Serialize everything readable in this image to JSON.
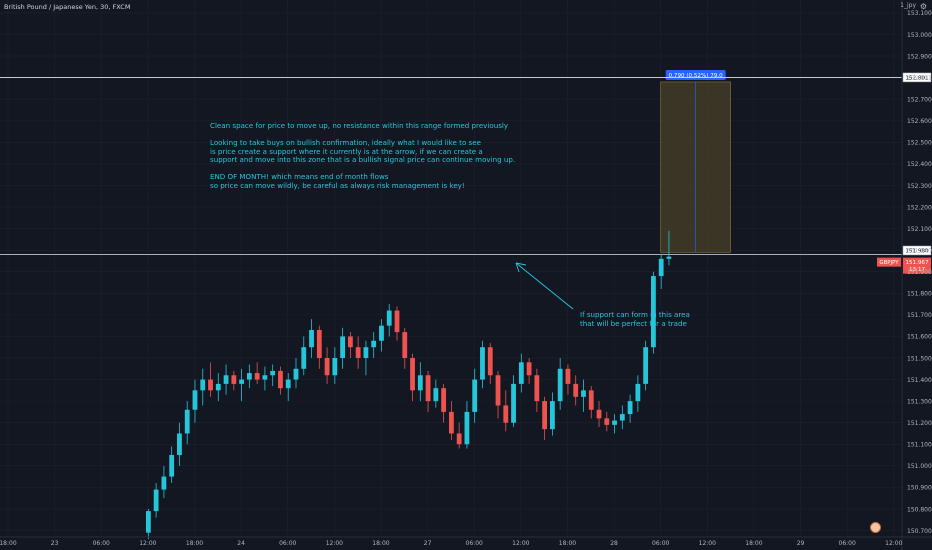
{
  "header": {
    "symbol_title": "British Pound / Japanese Yen, 30, FXCM",
    "corner_label": "1_jpy",
    "settings_icon": "gear-icon"
  },
  "colors": {
    "background": "#131722",
    "up": "#26c6da",
    "down": "#ef5350",
    "grid": "#1e222d",
    "axis_text": "#b2b5be",
    "annotation": "#26c6da",
    "zone_fill": "#4a4028",
    "zone_border": "#8a7a3a",
    "measure_label": "#2962ff"
  },
  "annotations": {
    "main_note": "Clean space for price to move up, no resistance within this range formed previously\n\nLooking to take buys on bullish confirmation, ideally what I would like to see\nis price create a support where it currently is at the arrow, if we can create a\nsupport and move into this zone that is a bullish signal price can continue moving up.\n\nEND OF MONTH! which means end of month flows\nso price can move wildly, be careful as always risk management is key!",
    "arrow_note": "If support can form in this area\nthat will be perfect for a trade",
    "measure_label": "0.790 (0.52%) 79.0"
  },
  "chart_data": {
    "type": "candlestick",
    "symbol": "GBPJPY",
    "ylim": [
      150.67,
      153.16
    ],
    "y_ticks": [
      153.1,
      153.0,
      152.9,
      152.8,
      152.7,
      152.6,
      152.5,
      152.4,
      152.3,
      152.2,
      152.1,
      152.0,
      151.9,
      151.8,
      151.7,
      151.6,
      151.5,
      151.4,
      151.3,
      151.2,
      151.1,
      151.0,
      150.9,
      150.8,
      150.7
    ],
    "y_tick_labels": [
      "153.100",
      "153.000",
      "152.900",
      "152.801",
      "152.700",
      "152.600",
      "152.500",
      "152.400",
      "152.300",
      "152.200",
      "152.100",
      "151.980",
      "151.900",
      "151.800",
      "151.700",
      "151.600",
      "151.500",
      "151.400",
      "151.300",
      "151.200",
      "151.100",
      "151.000",
      "150.900",
      "150.800",
      "150.700"
    ],
    "x_labels": [
      {
        "label": "18:00",
        "slot": 0
      },
      {
        "label": "23",
        "slot": 6
      },
      {
        "label": "06:00",
        "slot": 12
      },
      {
        "label": "12:00",
        "slot": 18
      },
      {
        "label": "18:00",
        "slot": 24
      },
      {
        "label": "24",
        "slot": 30
      },
      {
        "label": "06:00",
        "slot": 36
      },
      {
        "label": "12:00",
        "slot": 42
      },
      {
        "label": "18:00",
        "slot": 48
      },
      {
        "label": "27",
        "slot": 54
      },
      {
        "label": "06:00",
        "slot": 60
      },
      {
        "label": "12:00",
        "slot": 66
      },
      {
        "label": "18:00",
        "slot": 72
      },
      {
        "label": "28",
        "slot": 78
      },
      {
        "label": "06:00",
        "slot": 84
      },
      {
        "label": "12:00",
        "slot": 90
      },
      {
        "label": "18:00",
        "slot": 96
      },
      {
        "label": "29",
        "slot": 102
      },
      {
        "label": "06:00",
        "slot": 108
      },
      {
        "label": "12:00",
        "slot": 114
      }
    ],
    "first_candle_slot": 18,
    "candles": [
      [
        150.69,
        150.8,
        150.66,
        150.79
      ],
      [
        150.79,
        150.92,
        150.76,
        150.89
      ],
      [
        150.89,
        151.0,
        150.85,
        150.95
      ],
      [
        150.95,
        151.09,
        150.92,
        151.05
      ],
      [
        151.05,
        151.2,
        151.0,
        151.15
      ],
      [
        151.15,
        151.3,
        151.1,
        151.26
      ],
      [
        151.26,
        151.4,
        151.2,
        151.35
      ],
      [
        151.35,
        151.45,
        151.28,
        151.4
      ],
      [
        151.4,
        151.48,
        151.32,
        151.35
      ],
      [
        151.35,
        151.43,
        151.3,
        151.38
      ],
      [
        151.38,
        151.47,
        151.33,
        151.42
      ],
      [
        151.42,
        151.44,
        151.35,
        151.38
      ],
      [
        151.38,
        151.45,
        151.3,
        151.4
      ],
      [
        151.4,
        151.47,
        151.36,
        151.43
      ],
      [
        151.43,
        151.48,
        151.38,
        151.4
      ],
      [
        151.4,
        151.46,
        151.35,
        151.42
      ],
      [
        151.42,
        151.47,
        151.37,
        151.44
      ],
      [
        151.44,
        151.46,
        151.33,
        151.36
      ],
      [
        151.36,
        151.43,
        151.3,
        151.4
      ],
      [
        151.4,
        151.5,
        151.36,
        151.45
      ],
      [
        151.45,
        151.6,
        151.42,
        151.55
      ],
      [
        151.55,
        151.68,
        151.5,
        151.63
      ],
      [
        151.63,
        151.65,
        151.45,
        151.5
      ],
      [
        151.5,
        151.55,
        151.38,
        151.42
      ],
      [
        151.42,
        151.55,
        151.38,
        151.5
      ],
      [
        151.5,
        151.64,
        151.45,
        151.6
      ],
      [
        151.6,
        151.62,
        151.5,
        151.55
      ],
      [
        151.55,
        151.6,
        151.45,
        151.5
      ],
      [
        151.5,
        151.58,
        151.42,
        151.55
      ],
      [
        151.55,
        151.62,
        151.5,
        151.58
      ],
      [
        151.58,
        151.68,
        151.53,
        151.65
      ],
      [
        151.65,
        151.75,
        151.6,
        151.72
      ],
      [
        151.72,
        151.74,
        151.58,
        151.62
      ],
      [
        151.62,
        151.64,
        151.45,
        151.5
      ],
      [
        151.5,
        151.52,
        151.3,
        151.35
      ],
      [
        151.35,
        151.48,
        151.3,
        151.42
      ],
      [
        151.42,
        151.44,
        151.25,
        151.3
      ],
      [
        151.3,
        151.4,
        151.27,
        151.36
      ],
      [
        151.36,
        151.38,
        151.2,
        151.25
      ],
      [
        151.25,
        151.3,
        151.12,
        151.15
      ],
      [
        151.15,
        151.2,
        151.08,
        151.1
      ],
      [
        151.1,
        151.3,
        151.08,
        151.25
      ],
      [
        151.25,
        151.45,
        151.2,
        151.4
      ],
      [
        151.4,
        151.58,
        151.36,
        151.55
      ],
      [
        151.55,
        151.57,
        151.38,
        151.42
      ],
      [
        151.42,
        151.44,
        151.22,
        151.28
      ],
      [
        151.28,
        151.35,
        151.16,
        151.2
      ],
      [
        151.2,
        151.42,
        151.18,
        151.38
      ],
      [
        151.38,
        151.52,
        151.34,
        151.48
      ],
      [
        151.48,
        151.5,
        151.38,
        151.42
      ],
      [
        151.42,
        151.45,
        151.25,
        151.3
      ],
      [
        151.3,
        151.32,
        151.12,
        151.17
      ],
      [
        151.17,
        151.34,
        151.14,
        151.3
      ],
      [
        151.3,
        151.5,
        151.26,
        151.45
      ],
      [
        151.45,
        151.47,
        151.33,
        151.38
      ],
      [
        151.38,
        151.42,
        151.28,
        151.32
      ],
      [
        151.32,
        151.4,
        151.25,
        151.35
      ],
      [
        151.35,
        151.37,
        151.22,
        151.26
      ],
      [
        151.26,
        151.3,
        151.18,
        151.22
      ],
      [
        151.22,
        151.25,
        151.16,
        151.19
      ],
      [
        151.19,
        151.24,
        151.15,
        151.21
      ],
      [
        151.21,
        151.28,
        151.17,
        151.24
      ],
      [
        151.24,
        151.33,
        151.2,
        151.3
      ],
      [
        151.3,
        151.42,
        151.25,
        151.38
      ],
      [
        151.38,
        151.58,
        151.35,
        151.55
      ],
      [
        151.55,
        151.9,
        151.52,
        151.88
      ],
      [
        151.88,
        151.98,
        151.82,
        151.96
      ],
      [
        151.96,
        152.09,
        151.93,
        151.97
      ]
    ],
    "levels": [
      {
        "price": 152.801,
        "label": "152.801"
      },
      {
        "price": 151.98,
        "label": "151.980"
      }
    ],
    "last_price": {
      "symbol_label": "GBPJPY",
      "price_label": "151.967",
      "countdown": "13:17"
    },
    "target_zone": {
      "slot_start": 84,
      "slot_end": 93,
      "price_low": 151.99,
      "price_high": 152.78
    }
  }
}
